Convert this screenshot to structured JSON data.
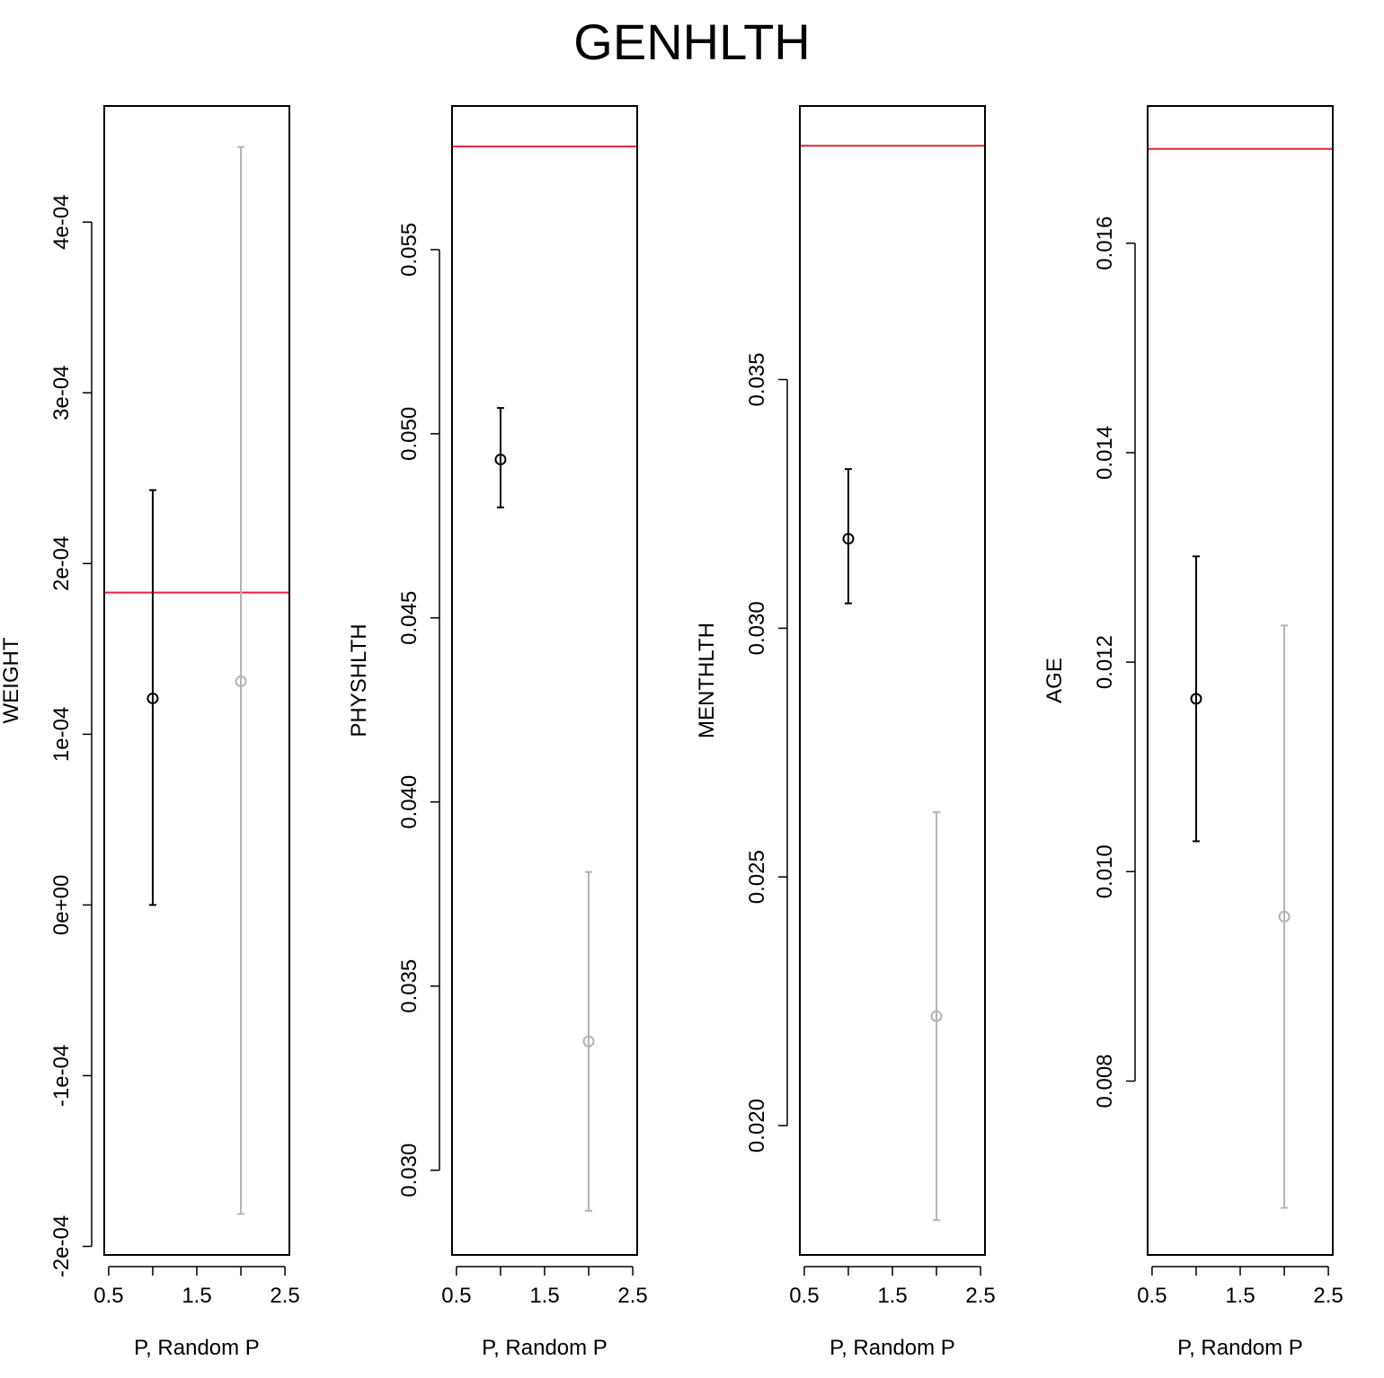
{
  "title": "GENHLTH",
  "colors": {
    "point": "#000000",
    "random": "#b3b3b3",
    "reference": "#e8203a",
    "frame": "#000000"
  },
  "chart_data": [
    {
      "type": "scatter",
      "subtype": "errorbar",
      "ylabel": "WEIGHT",
      "xlabel": "P, Random P",
      "xlim": [
        0.45,
        2.55
      ],
      "ylim": [
        -0.000205,
        0.000468
      ],
      "xticks": [
        0.5,
        1.5,
        2.5
      ],
      "xtick_labels": [
        "0.5",
        "1.5",
        "2.5"
      ],
      "yticks": [
        -0.0002,
        -0.0001,
        0,
        0.0001,
        0.0002,
        0.0003,
        0.0004
      ],
      "ytick_labels": [
        "-2e-04",
        "-1e-04",
        "0e+00",
        "1e-04",
        "2e-04",
        "3e-04",
        "4e-04"
      ],
      "reference_line": 0.000183,
      "series": [
        {
          "x": 1,
          "y": 0.000121,
          "lower": 0.0,
          "upper": 0.000243,
          "color": "black"
        },
        {
          "x": 2,
          "y": 0.000131,
          "lower": -0.000181,
          "upper": 0.000444,
          "color": "gray"
        }
      ]
    },
    {
      "type": "scatter",
      "subtype": "errorbar",
      "ylabel": "PHYSHLTH",
      "xlabel": "P, Random P",
      "xlim": [
        0.45,
        2.55
      ],
      "ylim": [
        0.0277,
        0.0589
      ],
      "xticks": [
        0.5,
        1.5,
        2.5
      ],
      "xtick_labels": [
        "0.5",
        "1.5",
        "2.5"
      ],
      "yticks": [
        0.03,
        0.035,
        0.04,
        0.045,
        0.05,
        0.055
      ],
      "ytick_labels": [
        "0.030",
        "0.035",
        "0.040",
        "0.045",
        "0.050",
        "0.055"
      ],
      "reference_line": 0.0578,
      "series": [
        {
          "x": 1,
          "y": 0.0493,
          "lower": 0.048,
          "upper": 0.0507,
          "color": "black"
        },
        {
          "x": 2,
          "y": 0.0335,
          "lower": 0.0289,
          "upper": 0.0381,
          "color": "gray"
        }
      ]
    },
    {
      "type": "scatter",
      "subtype": "errorbar",
      "ylabel": "MENTHLTH",
      "xlabel": "P, Random P",
      "xlim": [
        0.45,
        2.55
      ],
      "ylim": [
        0.0174,
        0.0405
      ],
      "xticks": [
        0.5,
        1.5,
        2.5
      ],
      "xtick_labels": [
        "0.5",
        "1.5",
        "2.5"
      ],
      "yticks": [
        0.02,
        0.025,
        0.03,
        0.035
      ],
      "ytick_labels": [
        "0.020",
        "0.025",
        "0.030",
        "0.035"
      ],
      "reference_line": 0.0397,
      "series": [
        {
          "x": 1,
          "y": 0.0318,
          "lower": 0.0305,
          "upper": 0.0332,
          "color": "black"
        },
        {
          "x": 2,
          "y": 0.0222,
          "lower": 0.0181,
          "upper": 0.0263,
          "color": "gray"
        }
      ]
    },
    {
      "type": "scatter",
      "subtype": "errorbar",
      "ylabel": "AGE",
      "xlabel": "P, Random P",
      "xlim": [
        0.45,
        2.55
      ],
      "ylim": [
        0.00634,
        0.01731
      ],
      "xticks": [
        0.5,
        1.5,
        2.5
      ],
      "xtick_labels": [
        "0.5",
        "1.5",
        "2.5"
      ],
      "yticks": [
        0.008,
        0.01,
        0.012,
        0.014,
        0.016
      ],
      "ytick_labels": [
        "0.008",
        "0.010",
        "0.012",
        "0.014",
        "0.016"
      ],
      "reference_line": 0.0169,
      "series": [
        {
          "x": 1,
          "y": 0.01165,
          "lower": 0.01029,
          "upper": 0.01301,
          "color": "black"
        },
        {
          "x": 2,
          "y": 0.00957,
          "lower": 0.00679,
          "upper": 0.01235,
          "color": "gray"
        }
      ]
    }
  ]
}
